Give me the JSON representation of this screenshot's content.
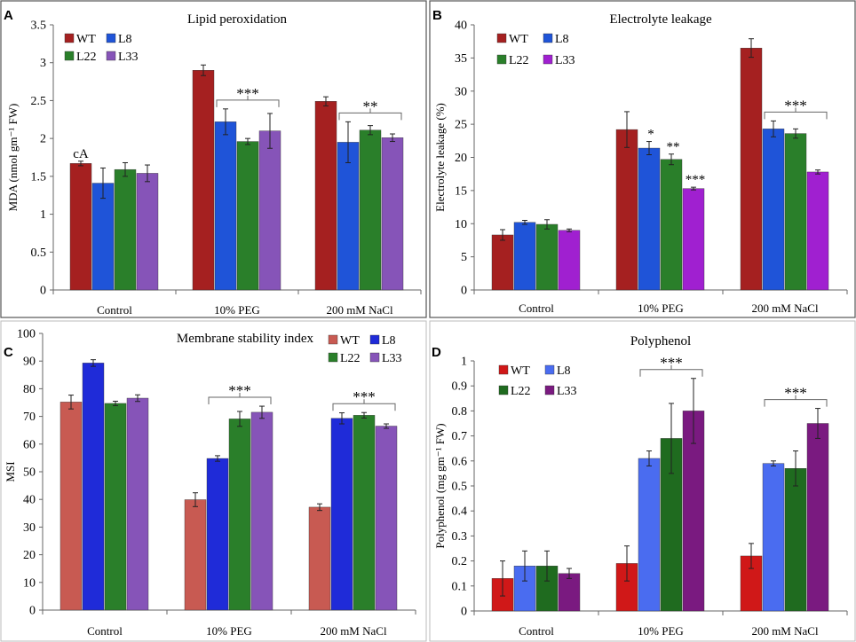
{
  "chart_data": [
    {
      "panel": "A",
      "type": "bar",
      "title": "Lipid peroxidation",
      "xlabel": "",
      "ylabel": "MDA (nmol gm⁻¹ FW)",
      "ylim": [
        0,
        3.5
      ],
      "yticks": [
        "0",
        "0.5",
        "1",
        "1.5",
        "2",
        "2.5",
        "3",
        "3.5"
      ],
      "categories": [
        "Control",
        "10% PEG",
        "200 mM NaCl"
      ],
      "series": [
        {
          "name": "WT",
          "color": "#A52020",
          "values": [
            1.67,
            2.9,
            2.49
          ],
          "errors": [
            0.03,
            0.07,
            0.06
          ]
        },
        {
          "name": "L8",
          "color": "#1F54D8",
          "values": [
            1.41,
            2.22,
            1.95
          ],
          "errors": [
            0.2,
            0.17,
            0.27
          ]
        },
        {
          "name": "L22",
          "color": "#2A7F2A",
          "values": [
            1.59,
            1.96,
            2.11
          ],
          "errors": [
            0.09,
            0.04,
            0.06
          ]
        },
        {
          "name": "L33",
          "color": "#8654B8",
          "values": [
            1.54,
            2.1,
            2.01
          ],
          "errors": [
            0.11,
            0.23,
            0.05
          ]
        }
      ],
      "annotations": [
        {
          "text": "cA",
          "category": 0,
          "series": 0
        },
        {
          "text": "***",
          "category": 1,
          "bracket": true
        },
        {
          "text": "**",
          "category": 2,
          "bracket": true
        }
      ],
      "legend": "top-left",
      "box": true
    },
    {
      "panel": "B",
      "type": "bar",
      "title": "Electrolyte leakage",
      "xlabel": "",
      "ylabel": "Electrolyte leakage (%)",
      "ylim": [
        0,
        40
      ],
      "yticks": [
        "0",
        "5",
        "10",
        "15",
        "20",
        "25",
        "30",
        "35",
        "40"
      ],
      "categories": [
        "Control",
        "10% PEG",
        "200 mM NaCl"
      ],
      "series": [
        {
          "name": "WT",
          "color": "#A52020",
          "values": [
            8.3,
            24.2,
            36.5
          ],
          "errors": [
            0.8,
            2.7,
            1.4
          ]
        },
        {
          "name": "L8",
          "color": "#1F54D8",
          "values": [
            10.2,
            21.4,
            24.3
          ],
          "errors": [
            0.3,
            1.0,
            1.2
          ]
        },
        {
          "name": "L22",
          "color": "#2A7F2A",
          "values": [
            9.9,
            19.7,
            23.6
          ],
          "errors": [
            0.7,
            0.8,
            0.7
          ]
        },
        {
          "name": "L33",
          "color": "#A020D0",
          "values": [
            9.0,
            15.3,
            17.8
          ],
          "errors": [
            0.2,
            0.2,
            0.3
          ]
        }
      ],
      "annotations": [
        {
          "text": "*",
          "category": 1,
          "series": 1
        },
        {
          "text": "**",
          "category": 1,
          "series": 2
        },
        {
          "text": "***",
          "category": 1,
          "series": 3
        },
        {
          "text": "***",
          "category": 2,
          "bracket": true
        }
      ],
      "legend": "top-left",
      "box": true
    },
    {
      "panel": "C",
      "type": "bar",
      "title": "Membrane stability index",
      "xlabel": "",
      "ylabel": "MSI",
      "ylim": [
        0,
        100
      ],
      "yticks": [
        "0",
        "10",
        "20",
        "30",
        "40",
        "50",
        "60",
        "70",
        "80",
        "90",
        "100"
      ],
      "categories": [
        "Control",
        "10% PEG",
        "200 mM NaCl"
      ],
      "series": [
        {
          "name": "WT",
          "color": "#C85A52",
          "values": [
            75.2,
            39.9,
            37.2
          ],
          "errors": [
            2.5,
            2.5,
            1.2
          ]
        },
        {
          "name": "L8",
          "color": "#1F2BD8",
          "values": [
            89.3,
            54.8,
            69.3
          ],
          "errors": [
            1.2,
            1.0,
            2.0
          ]
        },
        {
          "name": "L22",
          "color": "#2A7F2A",
          "values": [
            74.7,
            69.1,
            70.4
          ],
          "errors": [
            0.8,
            2.7,
            1.0
          ]
        },
        {
          "name": "L33",
          "color": "#8654B8",
          "values": [
            76.6,
            71.5,
            66.5
          ],
          "errors": [
            1.2,
            2.2,
            0.8
          ]
        }
      ],
      "annotations": [
        {
          "text": "***",
          "category": 1,
          "bracket": true
        },
        {
          "text": "***",
          "category": 2,
          "bracket": true
        }
      ],
      "legend": "top-right",
      "box": false
    },
    {
      "panel": "D",
      "type": "bar",
      "title": "Polyphenol",
      "xlabel": "",
      "ylabel": "Polyphenol (mg gm⁻¹ FW)",
      "ylim": [
        0,
        1
      ],
      "yticks": [
        "0",
        "0.1",
        "0.2",
        "0.3",
        "0.4",
        "0.5",
        "0.6",
        "0.7",
        "0.8",
        "0.9",
        "1"
      ],
      "categories": [
        "Control",
        "10% PEG",
        "200 mM NaCl"
      ],
      "series": [
        {
          "name": "WT",
          "color": "#D01818",
          "values": [
            0.13,
            0.19,
            0.22
          ],
          "errors": [
            0.07,
            0.07,
            0.05
          ]
        },
        {
          "name": "L8",
          "color": "#4A6CF0",
          "values": [
            0.18,
            0.61,
            0.59
          ],
          "errors": [
            0.06,
            0.03,
            0.01
          ]
        },
        {
          "name": "L22",
          "color": "#1F6B1F",
          "values": [
            0.18,
            0.69,
            0.57
          ],
          "errors": [
            0.06,
            0.14,
            0.07
          ]
        },
        {
          "name": "L33",
          "color": "#7A1A80",
          "values": [
            0.15,
            0.8,
            0.75
          ],
          "errors": [
            0.02,
            0.13,
            0.06
          ]
        }
      ],
      "annotations": [
        {
          "text": "***",
          "category": 1,
          "bracket": true
        },
        {
          "text": "***",
          "category": 2,
          "bracket": true
        }
      ],
      "legend": "top-left",
      "box": false
    }
  ]
}
